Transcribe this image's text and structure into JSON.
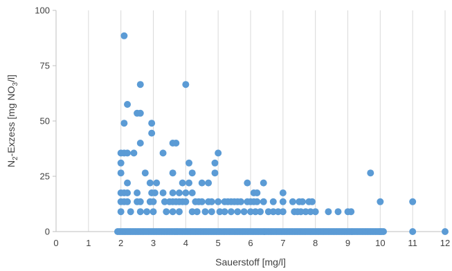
{
  "chart_data": {
    "type": "scatter",
    "title": "",
    "xlabel": "Sauerstoff [mg/l]",
    "ylabel": {
      "parts": [
        {
          "text": "N",
          "shift": "none"
        },
        {
          "text": "2",
          "shift": "sub"
        },
        {
          "text": "-Exzess [mg NO",
          "shift": "none"
        },
        {
          "text": "3",
          "shift": "sub"
        },
        {
          "text": "/l]",
          "shift": "none"
        }
      ]
    },
    "xlim": [
      0,
      12
    ],
    "ylim": [
      0,
      100
    ],
    "x_ticks": [
      0,
      1,
      2,
      3,
      4,
      5,
      6,
      7,
      8,
      9,
      10,
      11,
      12
    ],
    "y_ticks": [
      0,
      25,
      50,
      75,
      100
    ],
    "grid": "vertical",
    "legend": "none",
    "colors": {
      "point": "#5b9bd5",
      "grid": "#d9d9d9",
      "axis": "#bfbfbf",
      "text": "#404040"
    },
    "zero_line_x_range": [
      1.9,
      10.1
    ],
    "points": [
      [
        2.1,
        88.5
      ],
      [
        2.2,
        57.5
      ],
      [
        2.1,
        49
      ],
      [
        2.5,
        53.5
      ],
      [
        2.6,
        53.5
      ],
      [
        2.6,
        66.5
      ],
      [
        2.6,
        40
      ],
      [
        2.95,
        49
      ],
      [
        2.95,
        44.5
      ],
      [
        4.0,
        66.5
      ],
      [
        3.6,
        40
      ],
      [
        3.7,
        40
      ],
      [
        2.0,
        35.5
      ],
      [
        2.1,
        35.5
      ],
      [
        2.2,
        35.5
      ],
      [
        2.4,
        35.5
      ],
      [
        3.3,
        35.5
      ],
      [
        3.6,
        26.5
      ],
      [
        4.1,
        31
      ],
      [
        4.2,
        26.5
      ],
      [
        4.9,
        31
      ],
      [
        5.0,
        35.5
      ],
      [
        4.9,
        26.5
      ],
      [
        9.7,
        26.5
      ],
      [
        2.0,
        31
      ],
      [
        2.0,
        26.5
      ],
      [
        2.75,
        26.5
      ],
      [
        2.0,
        17.5
      ],
      [
        2.1,
        17.5
      ],
      [
        2.2,
        17.5
      ],
      [
        2.2,
        22
      ],
      [
        2.5,
        17.5
      ],
      [
        2.9,
        22
      ],
      [
        2.95,
        17.5
      ],
      [
        3.05,
        17.5
      ],
      [
        3.1,
        22
      ],
      [
        3.3,
        17.5
      ],
      [
        3.6,
        17.5
      ],
      [
        3.8,
        17.5
      ],
      [
        3.9,
        22
      ],
      [
        4.0,
        17.5
      ],
      [
        4.1,
        22
      ],
      [
        4.2,
        17.5
      ],
      [
        4.5,
        22
      ],
      [
        4.7,
        22
      ],
      [
        5.9,
        22
      ],
      [
        6.1,
        17.5
      ],
      [
        6.2,
        17.5
      ],
      [
        6.4,
        22
      ],
      [
        7.0,
        17.5
      ],
      [
        2.0,
        13.5
      ],
      [
        2.1,
        13.5
      ],
      [
        2.2,
        13.5
      ],
      [
        2.5,
        13.5
      ],
      [
        2.6,
        13.5
      ],
      [
        2.9,
        13.5
      ],
      [
        3.0,
        13.5
      ],
      [
        3.35,
        13.5
      ],
      [
        3.5,
        13.5
      ],
      [
        3.6,
        13.5
      ],
      [
        3.7,
        13.5
      ],
      [
        3.8,
        13.5
      ],
      [
        3.9,
        13.5
      ],
      [
        4.0,
        13.5
      ],
      [
        4.3,
        13.5
      ],
      [
        4.4,
        13.5
      ],
      [
        4.5,
        13.5
      ],
      [
        4.7,
        13.5
      ],
      [
        4.8,
        13.5
      ],
      [
        5.0,
        13.5
      ],
      [
        5.2,
        13.5
      ],
      [
        5.3,
        13.5
      ],
      [
        5.4,
        13.5
      ],
      [
        5.5,
        13.5
      ],
      [
        5.6,
        13.5
      ],
      [
        5.7,
        13.5
      ],
      [
        5.9,
        13.5
      ],
      [
        6.0,
        13.5
      ],
      [
        6.1,
        13.5
      ],
      [
        6.2,
        13.5
      ],
      [
        6.4,
        13.5
      ],
      [
        6.7,
        13.5
      ],
      [
        7.0,
        13.5
      ],
      [
        7.3,
        13.5
      ],
      [
        7.5,
        13.5
      ],
      [
        7.6,
        13.5
      ],
      [
        7.8,
        13.5
      ],
      [
        7.9,
        13.5
      ],
      [
        10.0,
        13.5
      ],
      [
        11.0,
        13.5
      ],
      [
        2.0,
        9
      ],
      [
        2.3,
        9
      ],
      [
        2.6,
        9
      ],
      [
        2.8,
        9
      ],
      [
        3.0,
        9
      ],
      [
        3.4,
        9
      ],
      [
        3.6,
        9
      ],
      [
        3.8,
        9
      ],
      [
        4.2,
        9
      ],
      [
        4.35,
        9
      ],
      [
        4.6,
        9
      ],
      [
        4.8,
        9
      ],
      [
        5.05,
        9
      ],
      [
        5.2,
        9
      ],
      [
        5.4,
        9
      ],
      [
        5.6,
        9
      ],
      [
        5.8,
        9
      ],
      [
        6.0,
        9
      ],
      [
        6.15,
        9
      ],
      [
        6.3,
        9
      ],
      [
        6.55,
        9
      ],
      [
        6.7,
        9
      ],
      [
        6.85,
        9
      ],
      [
        7.0,
        9
      ],
      [
        7.35,
        9
      ],
      [
        7.45,
        9
      ],
      [
        7.55,
        9
      ],
      [
        7.7,
        9
      ],
      [
        7.85,
        9
      ],
      [
        8.0,
        9
      ],
      [
        8.4,
        9
      ],
      [
        8.7,
        9
      ],
      [
        9.0,
        9
      ],
      [
        9.1,
        9
      ],
      [
        10.0,
        0
      ],
      [
        11.0,
        0
      ],
      [
        12.0,
        0
      ]
    ]
  }
}
